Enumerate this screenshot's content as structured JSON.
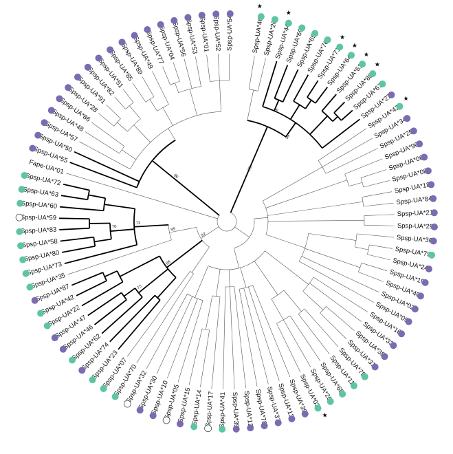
{
  "colors": {
    "green": "#5dc6a1",
    "purple": "#7b6bb0",
    "open": "#ffffff"
  },
  "leaves": [
    {
      "label": "Spsp-UA*46",
      "marker": "green",
      "star": true
    },
    {
      "label": "Spsp-UA*26",
      "marker": "green",
      "star": false
    },
    {
      "label": "Spsp-UA*44",
      "marker": "green",
      "star": true
    },
    {
      "label": "Spsp-UA*69",
      "marker": "green",
      "star": false
    },
    {
      "label": "Spsp-UA*65",
      "marker": "green",
      "star": false
    },
    {
      "label": "Spsp-UA*76",
      "marker": "green",
      "star": false
    },
    {
      "label": "Spsp-UA*71",
      "marker": "green",
      "star": true
    },
    {
      "label": "Spsp-UA*64",
      "marker": "green",
      "star": true
    },
    {
      "label": "Spsp-UA*61",
      "marker": "green",
      "star": true
    },
    {
      "label": "Spsp-UA*88",
      "marker": "green",
      "star": true
    },
    {
      "label": "Spsp-UA*67",
      "marker": "green",
      "star": false
    },
    {
      "label": "Spsp-UA*27",
      "marker": "purple",
      "star": false
    },
    {
      "label": "Spsp-UA*43",
      "marker": "green",
      "star": true
    },
    {
      "label": "Spsp-UA*34",
      "marker": "purple",
      "star": false
    },
    {
      "label": "Spsp-UA*25",
      "marker": "purple",
      "star": false
    },
    {
      "label": "Spsp-UA*90",
      "marker": "purple",
      "star": false
    },
    {
      "label": "Spsp-UA*06",
      "marker": "purple",
      "star": false
    },
    {
      "label": "Spsp-UA*08",
      "marker": "purple",
      "star": false
    },
    {
      "label": "Spsp-UA*18",
      "marker": "purple",
      "star": false
    },
    {
      "label": "Spsp-UA*84",
      "marker": "purple",
      "star": false
    },
    {
      "label": "Spsp-UA*21",
      "marker": "purple",
      "star": false
    },
    {
      "label": "Spsp-UA*29",
      "marker": "purple",
      "star": false
    },
    {
      "label": "Spsp-UA*36",
      "marker": "purple",
      "star": false
    },
    {
      "label": "Spsp-UA*79",
      "marker": "green",
      "star": false
    },
    {
      "label": "Spsp-UA*24",
      "marker": "purple",
      "star": false
    },
    {
      "label": "Spsp-UA*19",
      "marker": "purple",
      "star": false
    },
    {
      "label": "Spsp-UA*40",
      "marker": "purple",
      "star": false
    },
    {
      "label": "Spsp-UA*02",
      "marker": "purple",
      "star": false
    },
    {
      "label": "Spsp-UA*09",
      "marker": "purple",
      "star": false
    },
    {
      "label": "Spsp-UA*16",
      "marker": "purple",
      "star": false
    },
    {
      "label": "Spsp-UA*33",
      "marker": "purple",
      "star": false
    },
    {
      "label": "Spsp-UA*38",
      "marker": "purple",
      "star": false
    },
    {
      "label": "Spsp-UA*31",
      "marker": "purple",
      "star": false
    },
    {
      "label": "Spsp-UA*75",
      "marker": "green",
      "star": false
    },
    {
      "label": "Spsp-UA*11",
      "marker": "green",
      "star": false
    },
    {
      "label": "Spsp-UA*68",
      "marker": "green",
      "star": false
    },
    {
      "label": "Spsp-UA*20",
      "marker": "green",
      "star": false
    },
    {
      "label": "Spsp-UA*03",
      "marker": "green",
      "star": true
    },
    {
      "label": "Spsp-UA*39",
      "marker": "purple",
      "star": false
    },
    {
      "label": "Spsp-UA*13",
      "marker": "purple",
      "star": false
    },
    {
      "label": "Spsp-UA*37",
      "marker": "purple",
      "star": false
    },
    {
      "label": "Spsp-UA*78",
      "marker": "purple",
      "star": false
    },
    {
      "label": "Spsp-UA*12",
      "marker": "purple",
      "star": false
    },
    {
      "label": "Spsp-UA*39",
      "marker": "purple",
      "star": false
    },
    {
      "label": "Spsp-UA*41",
      "marker": "green",
      "star": false
    },
    {
      "label": "Spsp-UA*17",
      "marker": "open",
      "star": false
    },
    {
      "label": "Spsp-UA*14",
      "marker": "green",
      "star": false
    },
    {
      "label": "Spsp-UA*15",
      "marker": "purple",
      "star": false
    },
    {
      "label": "Spsp-UA*05",
      "marker": "open",
      "star": false
    },
    {
      "label": "Spsp-UA*10",
      "marker": "purple",
      "star": false
    },
    {
      "label": "Spsp-UA*30",
      "marker": "purple",
      "star": false
    },
    {
      "label": "Spsp-UA*32",
      "marker": "open",
      "star": false
    },
    {
      "label": "Spsp-UA*70",
      "marker": "green",
      "star": false
    },
    {
      "label": "Spsp-UA*07",
      "marker": "green",
      "star": false
    },
    {
      "label": "Spsp-UA*23",
      "marker": "green",
      "star": false
    },
    {
      "label": "Spsp-UA*74",
      "marker": "purple",
      "star": false
    },
    {
      "label": "Spsp-UA*62",
      "marker": "green",
      "star": false
    },
    {
      "label": "Spsp-UA*46",
      "marker": "purple",
      "star": false
    },
    {
      "label": "Spsp-UA*47",
      "marker": "purple",
      "star": false
    },
    {
      "label": "Spsp-UA*22",
      "marker": "green",
      "star": false
    },
    {
      "label": "Spsp-UA*42",
      "marker": "green",
      "star": false
    },
    {
      "label": "Spsp-UA*87",
      "marker": "purple",
      "star": false
    },
    {
      "label": "Spsp-UA*35",
      "marker": "green",
      "star": false
    },
    {
      "label": "Spsp-UA*73",
      "marker": "green",
      "star": false
    },
    {
      "label": "Spsp-UA*80",
      "marker": "green",
      "star": false
    },
    {
      "label": "Spsp-UA*58",
      "marker": "green",
      "star": false
    },
    {
      "label": "Spsp-UA*83",
      "marker": "green",
      "star": false
    },
    {
      "label": "Spsp-UA*59",
      "marker": "open",
      "star": false
    },
    {
      "label": "Spsp-UA*60",
      "marker": "green",
      "star": false
    },
    {
      "label": "Spsp-UA*63",
      "marker": "green",
      "star": false
    },
    {
      "label": "Spsp-UA*72",
      "marker": "green",
      "star": false
    },
    {
      "label": "Fape-UA*01",
      "marker": "none",
      "star": false
    },
    {
      "label": "Spsp-UA*55",
      "marker": "purple",
      "star": false
    },
    {
      "label": "Spsp-UA*50",
      "marker": "purple",
      "star": false
    },
    {
      "label": "Spsp-UA*57",
      "marker": "purple",
      "star": false
    },
    {
      "label": "Spsp-UA*48",
      "marker": "purple",
      "star": false
    },
    {
      "label": "Spsp-UA*86",
      "marker": "purple",
      "star": false
    },
    {
      "label": "Spsp-UA*28",
      "marker": "purple",
      "star": false
    },
    {
      "label": "Spsp-UA*91",
      "marker": "purple",
      "star": false
    },
    {
      "label": "Spsp-UA*82",
      "marker": "purple",
      "star": false
    },
    {
      "label": "Spsp-UA*51",
      "marker": "purple",
      "star": false
    },
    {
      "label": "Spsp-UA*85",
      "marker": "purple",
      "star": false
    },
    {
      "label": "Spsp-UA*89",
      "marker": "purple",
      "star": false
    },
    {
      "label": "Spsp-UA*49",
      "marker": "purple",
      "star": false
    },
    {
      "label": "Spsp-UA*77",
      "marker": "purple",
      "star": false
    },
    {
      "label": "Spsp-UA*04",
      "marker": "purple",
      "star": false
    },
    {
      "label": "Spsp-UA*56",
      "marker": "purple",
      "star": false
    },
    {
      "label": "Spsp-UA*53",
      "marker": "purple",
      "star": false
    },
    {
      "label": "Spsp-UA*01",
      "marker": "purple",
      "star": false
    },
    {
      "label": "Spsp-UA*52",
      "marker": "purple",
      "star": false
    },
    {
      "label": "Spsp-UA*54",
      "marker": "purple",
      "star": false
    }
  ],
  "bootstrap_labels": [
    "96",
    "75",
    "99",
    "78",
    "99",
    "73",
    "88",
    "92",
    "73",
    "70"
  ]
}
